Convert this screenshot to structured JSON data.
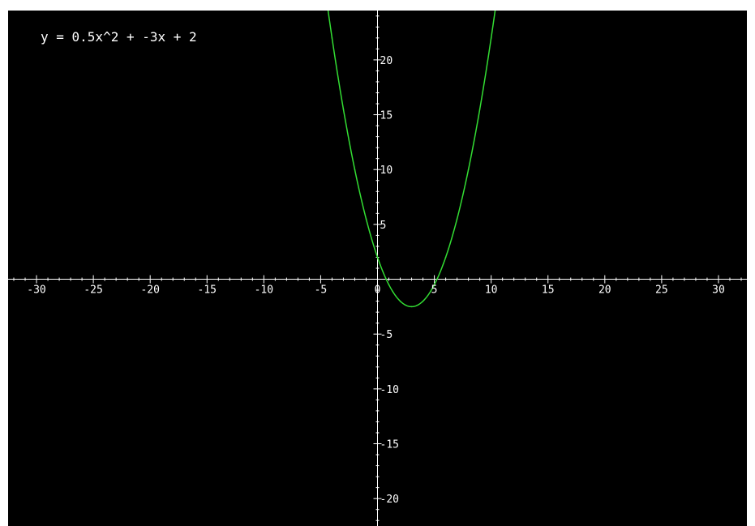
{
  "equation_label": "y = 0.5x^2 + -3x + 2",
  "colors": {
    "background": "#000000",
    "axis": "#ffffff",
    "curve": "#33dd33",
    "text": "#ffffff"
  },
  "chart_data": {
    "type": "line",
    "title": "",
    "xlabel": "",
    "ylabel": "",
    "function": {
      "a": 0.5,
      "b": -3,
      "c": 2
    },
    "xlim": [
      -32.5,
      32.5
    ],
    "ylim": [
      -22.5,
      24.5
    ],
    "x_ticks": [
      -30,
      -25,
      -20,
      -15,
      -10,
      -5,
      0,
      5,
      10,
      15,
      20,
      25,
      30
    ],
    "y_ticks": [
      -20,
      -15,
      -10,
      -5,
      5,
      10,
      15,
      20
    ],
    "x_tick_labels": [
      "-30",
      "-25",
      "-20",
      "-15",
      "-10",
      "-5",
      "0",
      "5",
      "10",
      "15",
      "20",
      "25",
      "30"
    ],
    "y_tick_labels": [
      "-20",
      "-15",
      "-10",
      "-5",
      "5",
      "10",
      "15",
      "20"
    ],
    "series": [
      {
        "values": [
          {
            "x": -4,
            "y": 22
          },
          {
            "x": -3,
            "y": 15.5
          },
          {
            "x": -2,
            "y": 10
          },
          {
            "x": -1,
            "y": 5.5
          },
          {
            "x": 0,
            "y": 2
          },
          {
            "x": 1,
            "y": -0.5
          },
          {
            "x": 2,
            "y": -2
          },
          {
            "x": 3,
            "y": -2.5
          },
          {
            "x": 4,
            "y": -2
          },
          {
            "x": 5,
            "y": -0.5
          },
          {
            "x": 6,
            "y": 2
          },
          {
            "x": 7,
            "y": 5.5
          },
          {
            "x": 8,
            "y": 10
          },
          {
            "x": 9,
            "y": 15.5
          },
          {
            "x": 10,
            "y": 22
          }
        ]
      }
    ],
    "grid": false,
    "legend": "none"
  }
}
